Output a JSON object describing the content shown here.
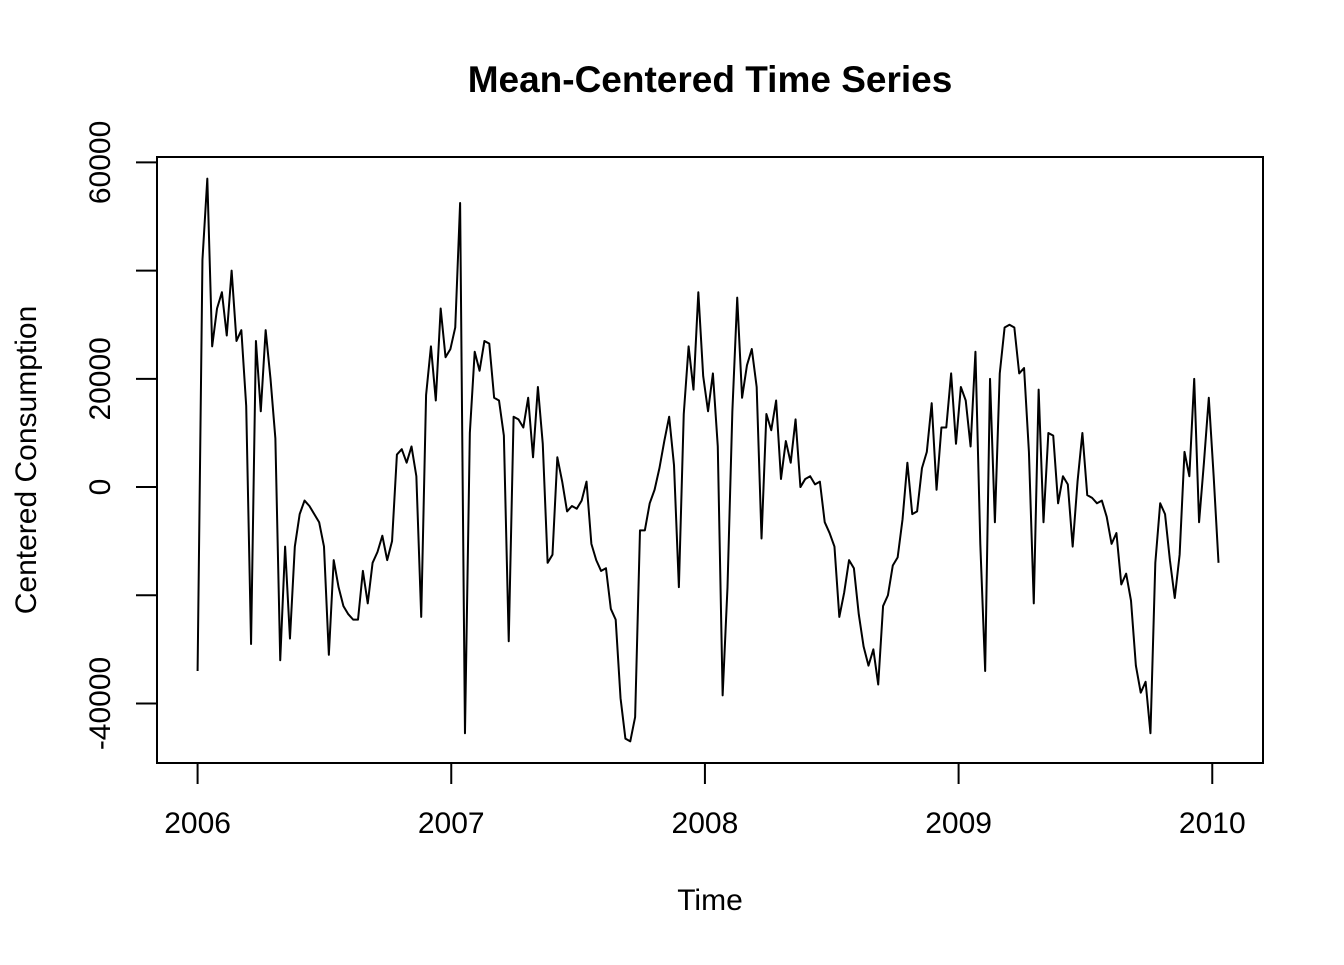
{
  "chart_data": {
    "type": "line",
    "title": "Mean-Centered Time Series",
    "xlabel": "Time",
    "ylabel": "Centered Consumption",
    "xlim": [
      2005.84,
      2010.2
    ],
    "ylim": [
      -51000,
      61000
    ],
    "x_ticks": [
      2006,
      2007,
      2008,
      2009,
      2010
    ],
    "x_tick_labels": [
      "2006",
      "2007",
      "2008",
      "2009",
      "2010"
    ],
    "y_ticks": [
      -40000,
      -20000,
      0,
      20000,
      40000,
      60000
    ],
    "y_tick_labels": [
      "-40000",
      "",
      "0",
      "20000",
      "",
      "60000"
    ],
    "x_start": 2006,
    "x_step": 0.019165,
    "grid": false,
    "legend": "none",
    "series": [
      {
        "values": [
          -34000,
          42000,
          57000,
          26000,
          33000,
          36000,
          28000,
          40000,
          27000,
          29000,
          15000,
          -29000,
          27000,
          14000,
          29000,
          20000,
          9000,
          -32000,
          -11000,
          -28000,
          -11000,
          -5000,
          -2500,
          -3500,
          -5000,
          -6500,
          -11000,
          -31000,
          -13500,
          -18500,
          -22000,
          -23500,
          -24500,
          -24500,
          -15500,
          -21500,
          -14000,
          -12000,
          -9000,
          -13500,
          -10000,
          6000,
          7000,
          4500,
          7500,
          2000,
          -24000,
          17000,
          26000,
          16000,
          33000,
          24000,
          25500,
          29500,
          52500,
          -45500,
          10000,
          25000,
          21500,
          27000,
          26500,
          16500,
          16000,
          9500,
          -28500,
          13000,
          12500,
          11000,
          16500,
          5500,
          18500,
          8000,
          -14000,
          -12500,
          5500,
          1000,
          -4500,
          -3500,
          -4000,
          -2500,
          1000,
          -10500,
          -13500,
          -15500,
          -15000,
          -22500,
          -24500,
          -39000,
          -46500,
          -47000,
          -42500,
          -8000,
          -8000,
          -3000,
          -500,
          3500,
          8500,
          13000,
          4000,
          -18500,
          13500,
          26000,
          18000,
          36000,
          20500,
          14000,
          21000,
          7500,
          -38500,
          -18500,
          14000,
          35000,
          16500,
          22500,
          25500,
          18500,
          -9500,
          13500,
          10500,
          16000,
          1500,
          8500,
          4500,
          12500,
          0,
          1500,
          2000,
          500,
          1000,
          -6500,
          -8500,
          -11000,
          -24000,
          -19500,
          -13500,
          -15000,
          -23500,
          -29500,
          -33000,
          -30000,
          -36500,
          -22000,
          -20000,
          -14500,
          -13000,
          -6000,
          4500,
          -5000,
          -4500,
          3500,
          6500,
          15500,
          -500,
          11000,
          11000,
          21000,
          8000,
          18500,
          16000,
          7500,
          25000,
          -10500,
          -34000,
          20000,
          -6500,
          21000,
          29500,
          30000,
          29500,
          21000,
          22000,
          6500,
          -21500,
          18000,
          -6500,
          10000,
          9500,
          -3000,
          2000,
          500,
          -11000,
          1000,
          10000,
          -1500,
          -2000,
          -3000,
          -2500,
          -5500,
          -10500,
          -8500,
          -18000,
          -16000,
          -21000,
          -33000,
          -38000,
          -36000,
          -45500,
          -14000,
          -3000,
          -5000,
          -13500,
          -20500,
          -12500,
          6500,
          2000,
          20000,
          -6500,
          4500,
          16500,
          2000,
          -14000
        ]
      }
    ]
  }
}
